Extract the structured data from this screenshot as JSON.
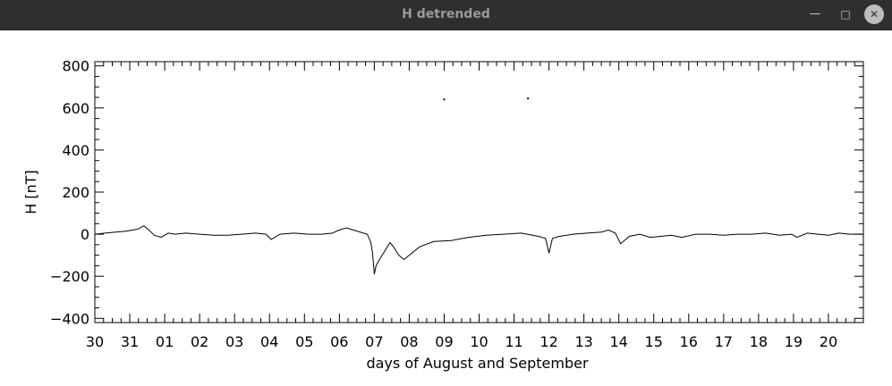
{
  "window": {
    "title": "H detrended",
    "minimize_glyph": "—",
    "maximize_glyph": "□",
    "close_glyph": "✕"
  },
  "colors": {
    "titlebar": "#2f2f2f",
    "plot_line": "#000000",
    "background": "#ffffff"
  },
  "chart_data": {
    "type": "line",
    "title": "",
    "xlabel": "days of August and September",
    "ylabel": "H [nT]",
    "ylim": [
      -420,
      820
    ],
    "xlim": [
      0,
      22
    ],
    "x_unit_note": "day ticks",
    "y_ticks": [
      800,
      600,
      400,
      200,
      0,
      -200,
      -400
    ],
    "y_tick_labels": [
      "800",
      "600",
      "400",
      "200",
      "0",
      "−200",
      "−400"
    ],
    "x_ticks": [
      0,
      1,
      2,
      3,
      4,
      5,
      6,
      7,
      8,
      9,
      10,
      11,
      12,
      13,
      14,
      15,
      16,
      17,
      18,
      19,
      20,
      21
    ],
    "x_tick_labels": [
      "30",
      "31",
      "01",
      "02",
      "03",
      "04",
      "05",
      "06",
      "07",
      "08",
      "09",
      "10",
      "11",
      "12",
      "13",
      "14",
      "15",
      "16",
      "17",
      "18",
      "19",
      "20"
    ],
    "grid": false,
    "series": [
      {
        "x": [
          0.0,
          0.3,
          0.6,
          0.9,
          1.1,
          1.25,
          1.4,
          1.55,
          1.7,
          1.9,
          2.1,
          2.3,
          2.6,
          3.0,
          3.4,
          3.8,
          4.2,
          4.6,
          4.9,
          5.05,
          5.3,
          5.7,
          6.1,
          6.5,
          6.8,
          7.0,
          7.2,
          7.5,
          7.8,
          7.9,
          7.95,
          8.0,
          8.05,
          8.15,
          8.3,
          8.45,
          8.55,
          8.7,
          8.85,
          9.0,
          9.3,
          9.7,
          10.2,
          10.7,
          11.2,
          11.7,
          12.2,
          12.7,
          12.9,
          13.0,
          13.1,
          13.3,
          13.7,
          14.1,
          14.5,
          14.7,
          14.9,
          15.05,
          15.3,
          15.6,
          15.9,
          16.2,
          16.5,
          16.8,
          17.2,
          17.6,
          18.0,
          18.4,
          18.8,
          19.2,
          19.6,
          19.95,
          20.1,
          20.4,
          20.7,
          21.0,
          21.3,
          21.6,
          22.0
        ],
        "y": [
          0,
          5,
          10,
          15,
          20,
          25,
          40,
          20,
          -5,
          -15,
          5,
          0,
          5,
          0,
          -5,
          -5,
          0,
          5,
          0,
          -25,
          0,
          5,
          0,
          0,
          5,
          20,
          30,
          15,
          0,
          -40,
          -90,
          -190,
          -150,
          -120,
          -80,
          -40,
          -60,
          -100,
          -120,
          -100,
          -60,
          -35,
          -30,
          -15,
          -5,
          0,
          5,
          -10,
          -20,
          -90,
          -20,
          -10,
          0,
          5,
          10,
          20,
          5,
          -45,
          -10,
          0,
          -15,
          -10,
          -5,
          -15,
          0,
          0,
          -5,
          0,
          0,
          5,
          -5,
          0,
          -15,
          5,
          0,
          -5,
          5,
          0,
          0
        ]
      }
    ],
    "isolated_points": [
      {
        "x": 10.0,
        "y": 640
      },
      {
        "x": 12.4,
        "y": 645
      }
    ]
  }
}
